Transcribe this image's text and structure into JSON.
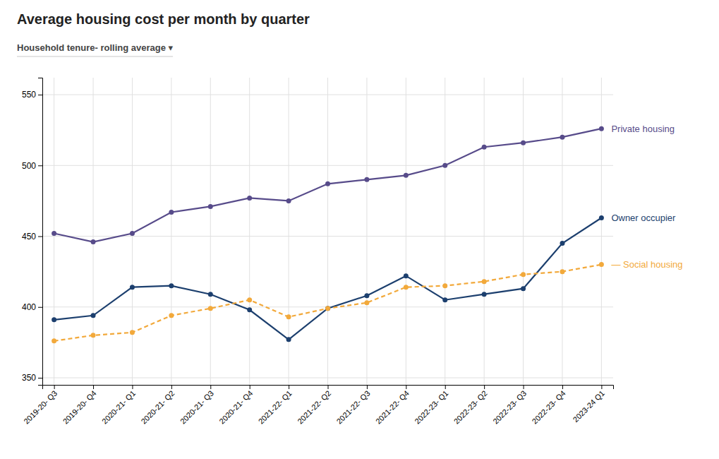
{
  "chart_data": {
    "type": "line",
    "title": "Average housing cost per month by quarter",
    "subtitle": "Household tenure- rolling average ▾",
    "categories": [
      "2019-20- Q3",
      "2019-20- Q4",
      "2020-21- Q1",
      "2020-21- Q2",
      "2020-21- Q3",
      "2020-21- Q4",
      "2021-22- Q1",
      "2021-22- Q2",
      "2021-22- Q3",
      "2021-22- Q4",
      "2022-23- Q1",
      "2022-23- Q2",
      "2022-23- Q3",
      "2022-23- Q4",
      "2023-24 Q1"
    ],
    "series": [
      {
        "name": "Private housing",
        "color": "#574b8a",
        "marker": "circle",
        "line_style": "solid",
        "values": [
          452,
          446,
          452,
          467,
          471,
          477,
          475,
          487,
          490,
          493,
          500,
          513,
          516,
          520,
          526
        ]
      },
      {
        "name": "Owner occupier",
        "color": "#1c3f6e",
        "marker": "circle",
        "line_style": "solid",
        "values": [
          391,
          394,
          414,
          415,
          409,
          398,
          377,
          399,
          408,
          422,
          405,
          409,
          413,
          445,
          463
        ]
      },
      {
        "name": "— Social housing",
        "color": "#f2a93b",
        "marker": "circle",
        "line_style": "dashed",
        "values": [
          376,
          380,
          382,
          394,
          399,
          405,
          393,
          399,
          403,
          414,
          415,
          418,
          423,
          425,
          430
        ]
      }
    ],
    "ylim": [
      345,
      562
    ],
    "yticks": [
      350,
      400,
      450,
      500,
      550
    ],
    "grid": true
  }
}
